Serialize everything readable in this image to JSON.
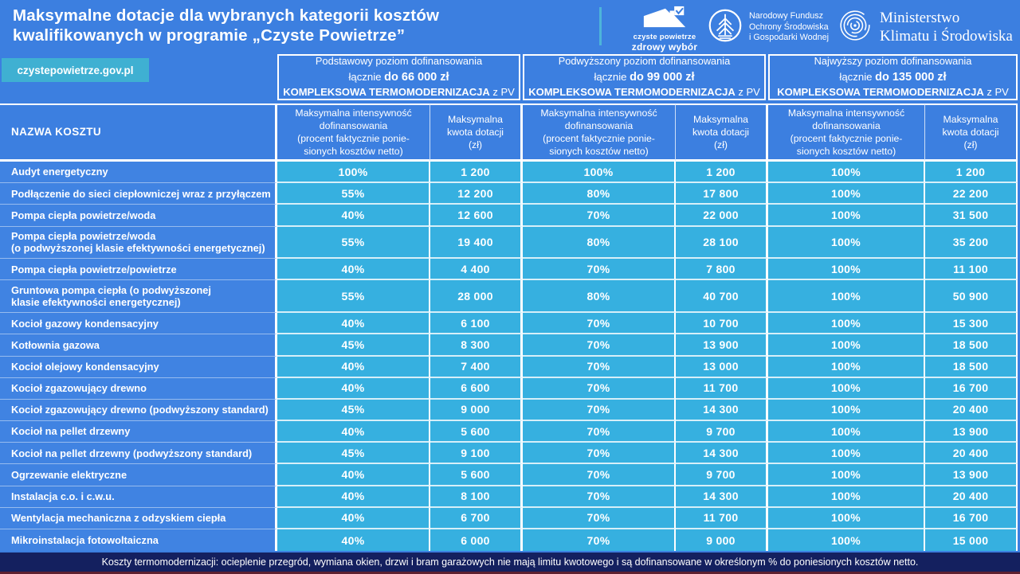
{
  "colors": {
    "page_blue": "#3c7fe0",
    "name_cell_blue": "#4083e2",
    "value_cell_cyan": "#36b0e0",
    "badge_teal": "#3fb0d2",
    "footer_navy": "#14205f",
    "footer_maroon_line": "#5e2030",
    "white": "#ffffff"
  },
  "header": {
    "title_line1": "Maksymalne dotacje dla wybranych kategorii kosztów",
    "title_line2": "kwalifikowanych w programie „Czyste Powietrze”",
    "site_badge": "czystepowietrze.gov.pl",
    "logos": {
      "czyste_powietrze": {
        "line1": "czyste powietrze",
        "line2": "zdrowy wybór"
      },
      "nfosigw": {
        "line1": "Narodowy Fundusz",
        "line2": "Ochrony Środowiska",
        "line3": "i Gospodarki Wodnej"
      },
      "ministry": {
        "line1": "Ministerstwo",
        "line2": "Klimatu i Środowiska"
      }
    }
  },
  "table": {
    "name_column_header": "NAZWA KOSZTU",
    "groups": [
      {
        "line1": "Podstawowy poziom dofinansowania",
        "line2_prefix": "łącznie ",
        "line2_bold": "do  66 000 zł",
        "line3_bold": "KOMPLEKSOWA TERMOMODERNIZACJA",
        "line3_suffix": " z PV"
      },
      {
        "line1": "Podwyższony poziom dofinansowania",
        "line2_prefix": "łącznie ",
        "line2_bold": "do 99 000 zł",
        "line3_bold": "KOMPLEKSOWA TERMOMODERNIZACJA",
        "line3_suffix": " z PV"
      },
      {
        "line1": "Najwyższy poziom dofinansowania",
        "line2_prefix": "łącznie ",
        "line2_bold": "do 135 000 zł",
        "line3_bold": "KOMPLEKSOWA TERMOMODERNIZACJA",
        "line3_suffix": " z PV"
      }
    ],
    "sub_headers": {
      "intensity_lines": [
        "Maksymalna intensywność",
        "dofinansowania",
        "(procent faktycznie ponie-",
        "sionych kosztów netto)"
      ],
      "amount_lines": [
        "Maksymalna",
        "kwota dotacji",
        "(zł)"
      ]
    },
    "rows": [
      {
        "name": "Audyt energetyczny",
        "tall": false,
        "values": [
          "100%",
          "1 200",
          "100%",
          "1 200",
          "100%",
          "1 200"
        ]
      },
      {
        "name": "Podłączenie do sieci ciepłowniczej wraz z przyłączem",
        "tall": false,
        "values": [
          "55%",
          "12 200",
          "80%",
          "17 800",
          "100%",
          "22 200"
        ]
      },
      {
        "name": "Pompa ciepła powietrze/woda",
        "tall": false,
        "values": [
          "40%",
          "12 600",
          "70%",
          "22 000",
          "100%",
          "31 500"
        ]
      },
      {
        "name": "Pompa ciepła powietrze/woda\n(o podwyższonej klasie efektywności energetycznej)",
        "tall": true,
        "values": [
          "55%",
          "19 400",
          "80%",
          "28 100",
          "100%",
          "35 200"
        ]
      },
      {
        "name": "Pompa ciepła powietrze/powietrze",
        "tall": false,
        "values": [
          "40%",
          "4 400",
          "70%",
          "7 800",
          "100%",
          "11 100"
        ]
      },
      {
        "name": "Gruntowa pompa ciepła (o podwyższonej\nklasie efektywności energetycznej)",
        "tall": true,
        "values": [
          "55%",
          "28 000",
          "80%",
          "40 700",
          "100%",
          "50 900"
        ]
      },
      {
        "name": "Kocioł gazowy kondensacyjny",
        "tall": false,
        "values": [
          "40%",
          "6 100",
          "70%",
          "10 700",
          "100%",
          "15 300"
        ]
      },
      {
        "name": "Kotłownia gazowa",
        "tall": false,
        "values": [
          "45%",
          "8 300",
          "70%",
          "13 900",
          "100%",
          "18 500"
        ]
      },
      {
        "name": "Kocioł olejowy kondensacyjny",
        "tall": false,
        "values": [
          "40%",
          "7 400",
          "70%",
          "13 000",
          "100%",
          "18 500"
        ]
      },
      {
        "name": "Kocioł zgazowujący drewno",
        "tall": false,
        "values": [
          "40%",
          "6 600",
          "70%",
          "11 700",
          "100%",
          "16 700"
        ]
      },
      {
        "name": "Kocioł zgazowujący drewno (podwyższony standard)",
        "tall": false,
        "values": [
          "45%",
          "9 000",
          "70%",
          "14 300",
          "100%",
          "20 400"
        ]
      },
      {
        "name": "Kocioł na pellet drzewny",
        "tall": false,
        "values": [
          "40%",
          "5 600",
          "70%",
          "9 700",
          "100%",
          "13 900"
        ]
      },
      {
        "name": "Kocioł na pellet drzewny (podwyższony standard)",
        "tall": false,
        "values": [
          "45%",
          "9 100",
          "70%",
          "14 300",
          "100%",
          "20 400"
        ]
      },
      {
        "name": "Ogrzewanie elektryczne",
        "tall": false,
        "values": [
          "40%",
          "5 600",
          "70%",
          "9 700",
          "100%",
          "13 900"
        ]
      },
      {
        "name": "Instalacja c.o. i c.w.u.",
        "tall": false,
        "values": [
          "40%",
          "8 100",
          "70%",
          "14 300",
          "100%",
          "20 400"
        ]
      },
      {
        "name": "Wentylacja mechaniczna z odzyskiem ciepła",
        "tall": false,
        "values": [
          "40%",
          "6 700",
          "70%",
          "11 700",
          "100%",
          "16 700"
        ]
      },
      {
        "name": "Mikroinstalacja fotowoltaiczna",
        "tall": false,
        "values": [
          "40%",
          "6 000",
          "70%",
          "9 000",
          "100%",
          "15 000"
        ]
      }
    ]
  },
  "footer": {
    "note": "Koszty  termomodernizacji: ocieplenie przegród, wymiana okien, drzwi i bram garażowych nie mają limitu kwotowego i są dofinansowane w określonym % do poniesionych kosztów netto."
  },
  "chart_data": {
    "type": "table",
    "title": "Maksymalne dotacje dla wybranych kategorii kosztów kwalifikowanych w programie „Czyste Powietrze”",
    "column_groups": [
      {
        "name": "Podstawowy poziom dofinansowania",
        "total_zl": 66000,
        "note": "KOMPLEKSOWA TERMOMODERNIZACJA z PV"
      },
      {
        "name": "Podwyższony poziom dofinansowania",
        "total_zl": 99000,
        "note": "KOMPLEKSOWA TERMOMODERNIZACJA z PV"
      },
      {
        "name": "Najwyższy poziom dofinansowania",
        "total_zl": 135000,
        "note": "KOMPLEKSOWA TERMOMODERNIZACJA z PV"
      }
    ],
    "columns": [
      "Nazwa kosztu",
      "Podstawowy – maks. intensywność (%)",
      "Podstawowy – maks. kwota (zł)",
      "Podwyższony – maks. intensywność (%)",
      "Podwyższony – maks. kwota (zł)",
      "Najwyższy – maks. intensywność (%)",
      "Najwyższy – maks. kwota (zł)"
    ],
    "rows": [
      [
        "Audyt energetyczny",
        100,
        1200,
        100,
        1200,
        100,
        1200
      ],
      [
        "Podłączenie do sieci ciepłowniczej wraz z przyłączem",
        55,
        12200,
        80,
        17800,
        100,
        22200
      ],
      [
        "Pompa ciepła powietrze/woda",
        40,
        12600,
        70,
        22000,
        100,
        31500
      ],
      [
        "Pompa ciepła powietrze/woda (o podwyższonej klasie efektywności energetycznej)",
        55,
        19400,
        80,
        28100,
        100,
        35200
      ],
      [
        "Pompa ciepła powietrze/powietrze",
        40,
        4400,
        70,
        7800,
        100,
        11100
      ],
      [
        "Gruntowa pompa ciepła (o podwyższonej klasie efektywności energetycznej)",
        55,
        28000,
        80,
        40700,
        100,
        50900
      ],
      [
        "Kocioł gazowy kondensacyjny",
        40,
        6100,
        70,
        10700,
        100,
        15300
      ],
      [
        "Kotłownia gazowa",
        45,
        8300,
        70,
        13900,
        100,
        18500
      ],
      [
        "Kocioł olejowy kondensacyjny",
        40,
        7400,
        70,
        13000,
        100,
        18500
      ],
      [
        "Kocioł zgazowujący drewno",
        40,
        6600,
        70,
        11700,
        100,
        16700
      ],
      [
        "Kocioł zgazowujący drewno (podwyższony standard)",
        45,
        9000,
        70,
        14300,
        100,
        20400
      ],
      [
        "Kocioł na pellet drzewny",
        40,
        5600,
        70,
        9700,
        100,
        13900
      ],
      [
        "Kocioł na pellet drzewny (podwyższony standard)",
        45,
        9100,
        70,
        14300,
        100,
        20400
      ],
      [
        "Ogrzewanie elektryczne",
        40,
        5600,
        70,
        9700,
        100,
        13900
      ],
      [
        "Instalacja c.o. i c.w.u.",
        40,
        8100,
        70,
        14300,
        100,
        20400
      ],
      [
        "Wentylacja mechaniczna z odzyskiem ciepła",
        40,
        6700,
        70,
        11700,
        100,
        16700
      ],
      [
        "Mikroinstalacja fotowoltaiczna",
        40,
        6000,
        70,
        9000,
        100,
        15000
      ]
    ]
  }
}
